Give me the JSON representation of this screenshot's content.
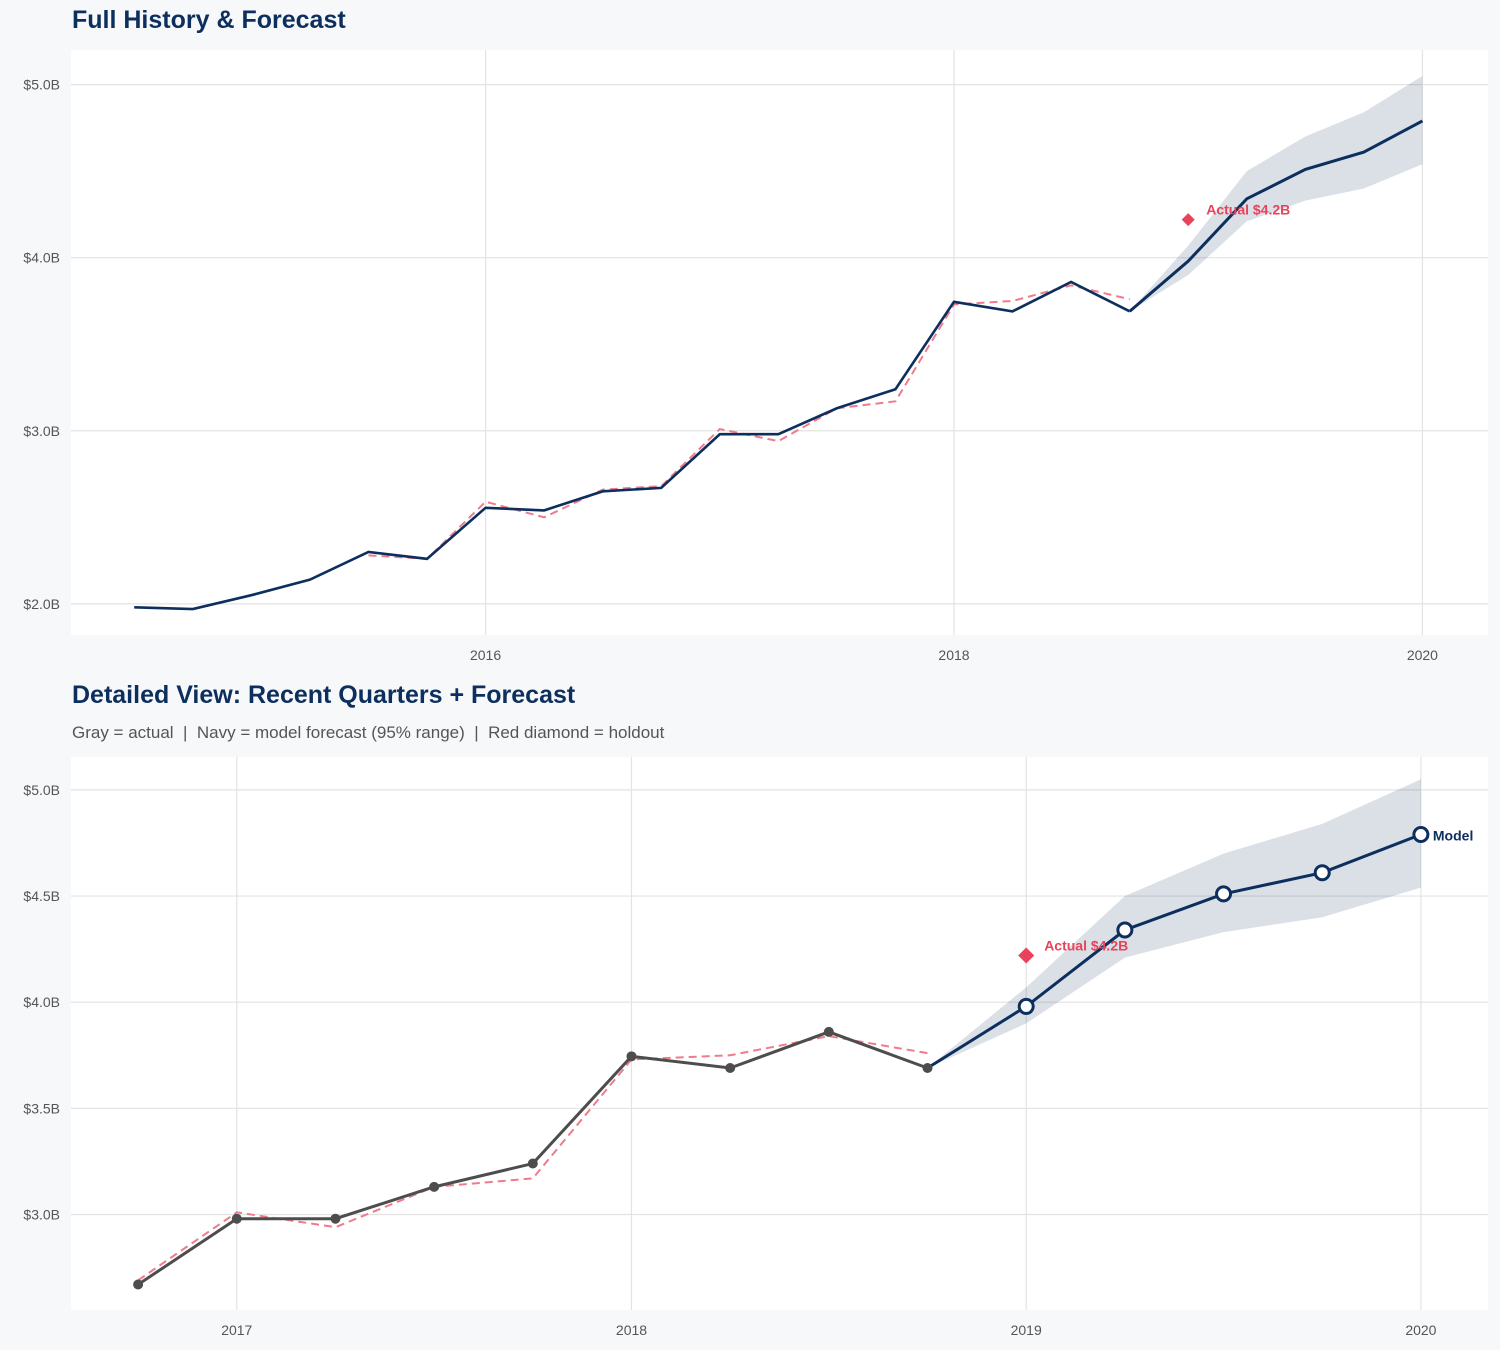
{
  "colors": {
    "navy": "#0d2f5e",
    "red": "#e8435a",
    "red_dashed": "#ef7b8d",
    "gray": "#4d4d4d",
    "band": "#0d2f5e",
    "grid": "#e3e3e3",
    "plot_bg": "#ffffff",
    "page_bg": "#f7f8fa"
  },
  "chart_data": [
    {
      "type": "line",
      "title": "Full History & Forecast",
      "xlim": [
        2014.23,
        2020.28
      ],
      "ylim": [
        1.82,
        5.2
      ],
      "x_ticks": [
        2016,
        2018,
        2020
      ],
      "x_tick_labels": [
        "2016",
        "2018",
        "2020"
      ],
      "y_ticks": [
        2.0,
        3.0,
        4.0,
        5.0
      ],
      "y_tick_labels": [
        "$2.0B",
        "$3.0B",
        "$4.0B",
        "$5.0B"
      ],
      "grid": true,
      "actual": {
        "x": [
          2014.5,
          2014.75,
          2015.0,
          2015.25,
          2015.5,
          2015.75,
          2016.0,
          2016.25,
          2016.5,
          2016.75,
          2017.0,
          2017.25,
          2017.5,
          2017.75,
          2018.0,
          2018.25,
          2018.5,
          2018.75
        ],
        "y": [
          1.98,
          1.97,
          2.05,
          2.14,
          2.3,
          2.26,
          2.555,
          2.54,
          2.65,
          2.67,
          2.98,
          2.98,
          3.13,
          3.24,
          3.745,
          3.69,
          3.86,
          3.69
        ]
      },
      "fitted": {
        "x": [
          2015.5,
          2015.75,
          2016.0,
          2016.25,
          2016.5,
          2016.75,
          2017.0,
          2017.25,
          2017.5,
          2017.75,
          2018.0,
          2018.25,
          2018.5,
          2018.75
        ],
        "y": [
          2.28,
          2.26,
          2.59,
          2.5,
          2.66,
          2.68,
          3.01,
          2.94,
          3.13,
          3.17,
          3.73,
          3.75,
          3.84,
          3.76
        ]
      },
      "forecast": {
        "x": [
          2018.75,
          2019.0,
          2019.25,
          2019.5,
          2019.75,
          2020.0
        ],
        "y": [
          3.69,
          3.98,
          4.34,
          4.51,
          4.61,
          4.79
        ],
        "lower": [
          3.69,
          3.9,
          4.21,
          4.33,
          4.4,
          4.54
        ],
        "upper": [
          3.69,
          4.07,
          4.5,
          4.7,
          4.84,
          5.05
        ]
      },
      "holdout": {
        "x": 2019.0,
        "y": 4.22,
        "label": "Actual $4.2B"
      },
      "actual_markers": false,
      "model_label": ""
    },
    {
      "type": "line",
      "title": "Detailed View: Recent Quarters + Forecast",
      "subtitle": "Gray = actual  |  Navy = model forecast (95% range)  |  Red diamond = holdout",
      "xlim": [
        2016.58,
        2020.17
      ],
      "ylim": [
        2.55,
        5.155
      ],
      "x_ticks": [
        2017,
        2018,
        2019,
        2020
      ],
      "x_tick_labels": [
        "2017",
        "2018",
        "2019",
        "2020"
      ],
      "y_ticks": [
        3.0,
        3.5,
        4.0,
        4.5,
        5.0
      ],
      "y_tick_labels": [
        "$3.0B",
        "$3.5B",
        "$4.0B",
        "$4.5B",
        "$5.0B"
      ],
      "grid": true,
      "actual": {
        "x": [
          2016.75,
          2017.0,
          2017.25,
          2017.5,
          2017.75,
          2018.0,
          2018.25,
          2018.5,
          2018.75
        ],
        "y": [
          2.67,
          2.98,
          2.98,
          3.13,
          3.24,
          3.745,
          3.69,
          3.86,
          3.69
        ]
      },
      "fitted": {
        "x": [
          2016.75,
          2017.0,
          2017.25,
          2017.5,
          2017.75,
          2018.0,
          2018.25,
          2018.5,
          2018.75
        ],
        "y": [
          2.69,
          3.01,
          2.94,
          3.13,
          3.17,
          3.73,
          3.75,
          3.84,
          3.76
        ]
      },
      "forecast": {
        "x": [
          2018.75,
          2019.0,
          2019.25,
          2019.5,
          2019.75,
          2020.0
        ],
        "y": [
          3.69,
          3.98,
          4.34,
          4.51,
          4.61,
          4.79
        ],
        "lower": [
          3.69,
          3.9,
          4.21,
          4.33,
          4.4,
          4.54
        ],
        "upper": [
          3.69,
          4.07,
          4.5,
          4.7,
          4.84,
          5.05
        ]
      },
      "holdout": {
        "x": 2019.0,
        "y": 4.22,
        "label": "Actual $4.2B"
      },
      "actual_markers": true,
      "model_label": "Model"
    }
  ]
}
